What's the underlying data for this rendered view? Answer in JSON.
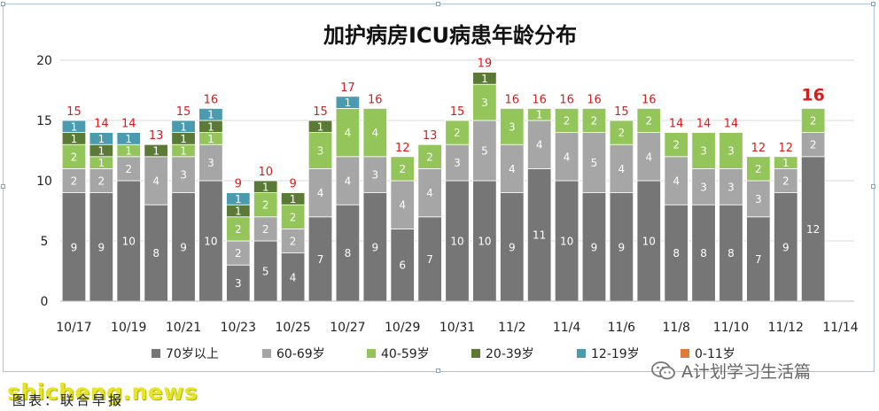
{
  "watermark": "shicheng.news",
  "source_label": "图表：联合早报",
  "wechat_account": "A计划学习生活篇",
  "colors": {
    "70岁以上": "#767676",
    "60-69岁": "#a6a6a6",
    "40-59岁": "#93c55a",
    "20-39岁": "#5a7a36",
    "12-19岁": "#4a9bb0",
    "0-11岁": "#e07b39",
    "total_label": "#d41e1e",
    "grid": "#d9d9d9"
  },
  "chart_data": {
    "type": "bar",
    "stacked": true,
    "title": "加护病房ICU病患年龄分布",
    "xlabel": "",
    "ylabel": "",
    "ylim": [
      0,
      20
    ],
    "yticks": [
      0,
      5,
      10,
      15,
      20
    ],
    "grid": true,
    "legend_position": "bottom",
    "categories": [
      "10/17",
      "10/18",
      "10/19",
      "10/20",
      "10/21",
      "10/22",
      "10/23",
      "10/24",
      "10/25",
      "10/26",
      "10/27",
      "10/28",
      "10/29",
      "10/30",
      "10/31",
      "11/1",
      "11/2",
      "11/3",
      "11/4",
      "11/5",
      "11/6",
      "11/7",
      "11/8",
      "11/9",
      "11/10",
      "11/11",
      "11/12",
      "11/13",
      "11/14"
    ],
    "xtick_labels": [
      "10/17",
      "10/19",
      "10/21",
      "10/23",
      "10/25",
      "10/27",
      "10/29",
      "10/31",
      "11/2",
      "11/4",
      "11/6",
      "11/8",
      "11/10",
      "11/12",
      "11/14"
    ],
    "series": [
      {
        "name": "70岁以上",
        "values": [
          9,
          9,
          10,
          8,
          9,
          10,
          3,
          5,
          4,
          7,
          8,
          9,
          6,
          7,
          10,
          10,
          9,
          11,
          10,
          9,
          9,
          10,
          8,
          8,
          8,
          7,
          9,
          12,
          null
        ]
      },
      {
        "name": "60-69岁",
        "values": [
          2,
          2,
          2,
          4,
          3,
          3,
          2,
          2,
          2,
          4,
          4,
          3,
          4,
          4,
          3,
          5,
          4,
          4,
          4,
          5,
          4,
          4,
          4,
          3,
          3,
          3,
          2,
          2,
          null
        ]
      },
      {
        "name": "40-59岁",
        "values": [
          2,
          1,
          1,
          null,
          1,
          1,
          2,
          2,
          2,
          3,
          4,
          4,
          2,
          2,
          2,
          3,
          3,
          1,
          2,
          2,
          2,
          2,
          2,
          3,
          3,
          2,
          1,
          2,
          null
        ]
      },
      {
        "name": "20-39岁",
        "values": [
          1,
          1,
          null,
          1,
          1,
          1,
          1,
          1,
          1,
          1,
          null,
          null,
          null,
          null,
          null,
          1,
          null,
          null,
          null,
          null,
          null,
          null,
          null,
          null,
          null,
          null,
          null,
          null,
          null
        ]
      },
      {
        "name": "12-19岁",
        "values": [
          1,
          1,
          1,
          null,
          1,
          1,
          1,
          null,
          null,
          null,
          1,
          null,
          null,
          null,
          null,
          null,
          null,
          null,
          null,
          null,
          null,
          null,
          null,
          null,
          null,
          null,
          null,
          null,
          null
        ]
      },
      {
        "name": "0-11岁",
        "values": [
          null,
          null,
          null,
          null,
          null,
          null,
          null,
          null,
          null,
          null,
          null,
          null,
          null,
          null,
          null,
          null,
          null,
          null,
          null,
          null,
          null,
          null,
          null,
          null,
          null,
          null,
          null,
          null,
          null
        ]
      }
    ],
    "totals": [
      15,
      14,
      14,
      13,
      15,
      16,
      9,
      10,
      9,
      15,
      17,
      16,
      12,
      13,
      15,
      19,
      16,
      16,
      16,
      16,
      15,
      16,
      14,
      14,
      14,
      12,
      12,
      16,
      null
    ]
  }
}
